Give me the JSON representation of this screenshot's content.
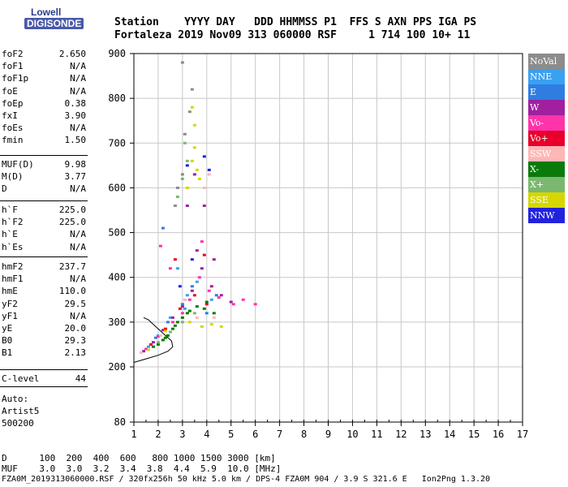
{
  "logo": {
    "line1": "Lowell",
    "line2": "DIGISONDE"
  },
  "header": {
    "labels": "Station    YYYY DAY   DDD HHMMSS P1  FFS S AXN PPS IGA PS",
    "values": "Fortaleza 2019 Nov09 313 060000 RSF     1 714 100 10+ 11"
  },
  "params_group1": [
    {
      "name": "foF2",
      "value": "2.650"
    },
    {
      "name": "foF1",
      "value": "N/A"
    },
    {
      "name": "foF1p",
      "value": "N/A"
    },
    {
      "name": "foE",
      "value": "N/A"
    },
    {
      "name": "foEp",
      "value": "0.38"
    },
    {
      "name": "fxI",
      "value": "3.90"
    },
    {
      "name": "foEs",
      "value": "N/A"
    },
    {
      "name": "fmin",
      "value": "1.50"
    }
  ],
  "params_group2": [
    {
      "name": "MUF(D)",
      "value": "9.98"
    },
    {
      "name": "M(D)",
      "value": "3.77"
    },
    {
      "name": "D",
      "value": "N/A"
    }
  ],
  "params_group3": [
    {
      "name": "h`F",
      "value": "225.0"
    },
    {
      "name": "h`F2",
      "value": "225.0"
    },
    {
      "name": "h`E",
      "value": "N/A"
    },
    {
      "name": "h`Es",
      "value": "N/A"
    }
  ],
  "params_group4": [
    {
      "name": "hmF2",
      "value": "237.7"
    },
    {
      "name": "hmF1",
      "value": "N/A"
    },
    {
      "name": "hmE",
      "value": "110.0"
    },
    {
      "name": "yF2",
      "value": "29.5"
    },
    {
      "name": "yF1",
      "value": "N/A"
    },
    {
      "name": "yE",
      "value": "20.0"
    },
    {
      "name": "B0",
      "value": "29.3"
    },
    {
      "name": "B1",
      "value": "2.13"
    }
  ],
  "params_group5": [
    {
      "name": "C-level",
      "value": "44"
    }
  ],
  "autoscale": {
    "line1": "Auto:",
    "line2": "Artist5",
    "line3": "500200"
  },
  "legend": [
    {
      "name": "NoVal",
      "color": "#8c8c8c"
    },
    {
      "name": "NNE",
      "color": "#3aa0f0"
    },
    {
      "name": "E",
      "color": "#2f7de1"
    },
    {
      "name": "W",
      "color": "#a020a0"
    },
    {
      "name": "Vo-",
      "color": "#ff33aa"
    },
    {
      "name": "Vo+",
      "color": "#e8002a"
    },
    {
      "name": "SSW",
      "color": "#ffb6b6"
    },
    {
      "name": "X-",
      "color": "#0a7a0a"
    },
    {
      "name": "X+",
      "color": "#7ab870"
    },
    {
      "name": "SSE",
      "color": "#d6d600"
    },
    {
      "name": "NNW",
      "color": "#2222dd"
    }
  ],
  "footer": {
    "line1": "D      100  200  400  600   800 1000 1500 3000 [km]",
    "line2": "MUF    3.0  3.0  3.2  3.4  3.8  4.4  5.9  10.0 [MHz]",
    "line3": "FZA0M_2019313060000.RSF / 320fx256h 50 kHz 5.0 km / DPS-4 FZA0M 904 / 3.9 S 321.6 E   Ion2Png 1.3.20"
  },
  "chart_data": {
    "type": "scatter",
    "title": "",
    "xlabel": "",
    "ylabel": "",
    "xlim": [
      1,
      17
    ],
    "ylim": [
      80,
      900
    ],
    "x_ticks": [
      1,
      2,
      3,
      4,
      5,
      6,
      7,
      8,
      9,
      10,
      11,
      12,
      13,
      14,
      15,
      16,
      17
    ],
    "y_ticks": [
      80,
      200,
      300,
      400,
      500,
      600,
      700,
      800,
      900
    ],
    "grid": true,
    "series": [
      {
        "name": "NNE",
        "points": [
          [
            1.6,
            245
          ],
          [
            2.0,
            270
          ],
          [
            2.5,
            310
          ],
          [
            3.2,
            360
          ],
          [
            3.6,
            390
          ],
          [
            4.2,
            350
          ],
          [
            2.8,
            420
          ],
          [
            3.1,
            330
          ]
        ]
      },
      {
        "name": "E",
        "points": [
          [
            1.9,
            265
          ],
          [
            2.4,
            300
          ],
          [
            3.0,
            340
          ],
          [
            3.4,
            380
          ],
          [
            4.0,
            320
          ],
          [
            4.4,
            360
          ],
          [
            2.2,
            510
          ]
        ]
      },
      {
        "name": "W",
        "points": [
          [
            1.4,
            235
          ],
          [
            1.8,
            255
          ],
          [
            2.2,
            282
          ],
          [
            2.6,
            310
          ],
          [
            3.0,
            335
          ],
          [
            3.4,
            370
          ],
          [
            3.8,
            420
          ],
          [
            4.2,
            380
          ],
          [
            4.6,
            360
          ],
          [
            5.0,
            345
          ],
          [
            3.6,
            460
          ],
          [
            3.2,
            560
          ],
          [
            3.9,
            560
          ],
          [
            4.3,
            440
          ],
          [
            3.5,
            630
          ]
        ]
      },
      {
        "name": "Vo-",
        "points": [
          [
            1.5,
            240
          ],
          [
            2.0,
            268
          ],
          [
            2.6,
            300
          ],
          [
            3.0,
            320
          ],
          [
            3.3,
            350
          ],
          [
            3.7,
            400
          ],
          [
            4.1,
            370
          ],
          [
            4.5,
            355
          ],
          [
            5.1,
            340
          ],
          [
            5.5,
            350
          ],
          [
            6.0,
            340
          ],
          [
            3.8,
            480
          ],
          [
            2.5,
            420
          ],
          [
            2.1,
            470
          ]
        ]
      },
      {
        "name": "Vo+",
        "points": [
          [
            1.7,
            250
          ],
          [
            2.3,
            285
          ],
          [
            2.9,
            330
          ],
          [
            3.5,
            360
          ],
          [
            4.0,
            340
          ],
          [
            2.7,
            440
          ],
          [
            3.9,
            450
          ]
        ]
      },
      {
        "name": "SSW",
        "points": [
          [
            1.3,
            232
          ],
          [
            2.1,
            270
          ],
          [
            3.1,
            350
          ],
          [
            3.9,
            600
          ],
          [
            4.1,
            630
          ],
          [
            3.6,
            310
          ],
          [
            4.3,
            310
          ]
        ]
      },
      {
        "name": "X-",
        "points": [
          [
            1.8,
            245
          ],
          [
            2.0,
            250
          ],
          [
            2.2,
            260
          ],
          [
            2.4,
            270
          ],
          [
            2.6,
            285
          ],
          [
            2.8,
            300
          ],
          [
            3.0,
            310
          ],
          [
            3.3,
            325
          ],
          [
            3.6,
            335
          ],
          [
            3.9,
            330
          ],
          [
            4.3,
            320
          ],
          [
            2.3,
            265
          ],
          [
            2.7,
            292
          ],
          [
            3.2,
            320
          ],
          [
            4.0,
            345
          ]
        ]
      },
      {
        "name": "X+",
        "points": [
          [
            2.0,
            255
          ],
          [
            2.5,
            278
          ],
          [
            3.0,
            300
          ],
          [
            3.5,
            320
          ],
          [
            2.8,
            580
          ],
          [
            3.0,
            620
          ],
          [
            3.2,
            660
          ],
          [
            3.1,
            700
          ]
        ]
      },
      {
        "name": "SSE",
        "points": [
          [
            1.6,
            238
          ],
          [
            2.3,
            280
          ],
          [
            3.3,
            300
          ],
          [
            3.8,
            290
          ],
          [
            4.2,
            295
          ],
          [
            4.6,
            290
          ],
          [
            3.4,
            660
          ],
          [
            3.5,
            690
          ],
          [
            3.6,
            640
          ],
          [
            3.5,
            740
          ],
          [
            3.4,
            780
          ],
          [
            3.7,
            620
          ],
          [
            3.2,
            600
          ]
        ]
      },
      {
        "name": "NNW",
        "points": [
          [
            2.9,
            380
          ],
          [
            3.4,
            440
          ],
          [
            3.2,
            650
          ],
          [
            3.9,
            670
          ],
          [
            4.1,
            640
          ]
        ]
      },
      {
        "name": "NoVal",
        "points": [
          [
            2.7,
            560
          ],
          [
            2.8,
            600
          ],
          [
            3.0,
            630
          ],
          [
            3.1,
            720
          ],
          [
            3.3,
            770
          ],
          [
            3.4,
            820
          ],
          [
            3.0,
            880
          ]
        ]
      }
    ],
    "profile_curve": [
      [
        1.0,
        210
      ],
      [
        1.5,
        218
      ],
      [
        2.0,
        226
      ],
      [
        2.4,
        235
      ],
      [
        2.6,
        245
      ],
      [
        2.55,
        258
      ],
      [
        2.2,
        275
      ],
      [
        1.9,
        290
      ],
      [
        1.6,
        305
      ],
      [
        1.4,
        310
      ]
    ]
  }
}
